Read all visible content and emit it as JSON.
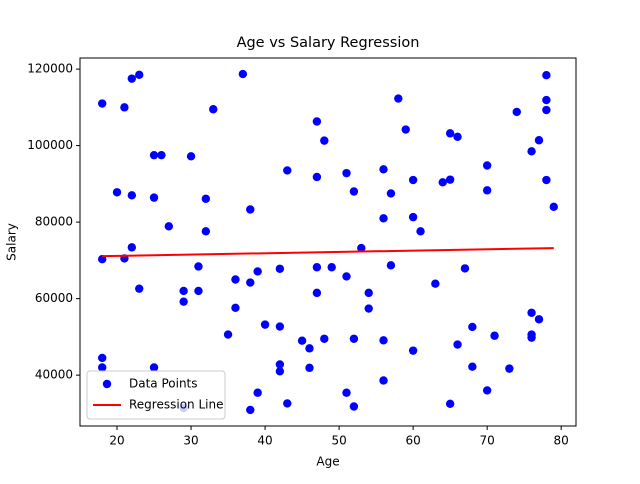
{
  "chart_data": {
    "type": "scatter",
    "title": "Age vs Salary Regression",
    "x_label": "Age",
    "y_label": "Salary",
    "series": [
      {
        "name": "Data Points",
        "type": "scatter",
        "color": "#0000ff",
        "x": [
          18,
          18,
          18,
          18,
          20,
          21,
          21,
          22,
          22,
          22,
          23,
          23,
          25,
          25,
          25,
          26,
          27,
          29,
          29,
          29,
          30,
          31,
          31,
          32,
          32,
          33,
          35,
          36,
          36,
          37,
          38,
          38,
          38,
          39,
          39,
          40,
          42,
          42,
          42,
          42,
          43,
          43,
          45,
          46,
          46,
          47,
          47,
          47,
          47,
          48,
          48,
          49,
          51,
          51,
          51,
          52,
          52,
          52,
          53,
          54,
          54,
          56,
          56,
          56,
          56,
          57,
          57,
          58,
          59,
          60,
          60,
          60,
          61,
          63,
          64,
          65,
          65,
          65,
          66,
          66,
          67,
          68,
          68,
          70,
          70,
          70,
          71,
          73,
          74,
          76,
          76,
          76,
          76,
          77,
          77,
          78,
          78,
          78,
          78,
          79
        ],
        "values": [
          111000,
          70300,
          44500,
          42000,
          87800,
          110000,
          70500,
          117500,
          87000,
          73400,
          118500,
          62600,
          97500,
          86400,
          42000,
          97500,
          78900,
          62000,
          59200,
          31400,
          97200,
          68400,
          62000,
          86100,
          77600,
          109500,
          50600,
          65000,
          57600,
          118700,
          83300,
          64200,
          30900,
          67100,
          35400,
          53200,
          67800,
          52700,
          42800,
          41000,
          93500,
          32600,
          49000,
          47000,
          41900,
          106300,
          91800,
          68200,
          61500,
          101300,
          49500,
          68200,
          92800,
          65800,
          35400,
          88000,
          49500,
          31800,
          73200,
          61500,
          57400,
          93800,
          81000,
          49100,
          38600,
          87500,
          68700,
          112300,
          104200,
          91000,
          81300,
          46400,
          77600,
          63900,
          90400,
          103200,
          91100,
          32500,
          102300,
          48000,
          67900,
          52600,
          42200,
          94800,
          88300,
          36000,
          50300,
          41700,
          108800,
          98500,
          56300,
          50600,
          49800,
          101400,
          54600,
          118400,
          111900,
          109300,
          91000,
          84000
        ]
      },
      {
        "name": "Regression Line",
        "type": "line",
        "color": "#ff0000",
        "x": [
          18,
          79
        ],
        "values": [
          71100,
          73200
        ]
      }
    ],
    "xlim": [
      15,
      82
    ],
    "ylim": [
      26700,
      122900
    ],
    "xticks": [
      20,
      30,
      40,
      50,
      60,
      70,
      80
    ],
    "yticks": [
      40000,
      60000,
      80000,
      100000,
      120000
    ],
    "legend": "lower left"
  }
}
